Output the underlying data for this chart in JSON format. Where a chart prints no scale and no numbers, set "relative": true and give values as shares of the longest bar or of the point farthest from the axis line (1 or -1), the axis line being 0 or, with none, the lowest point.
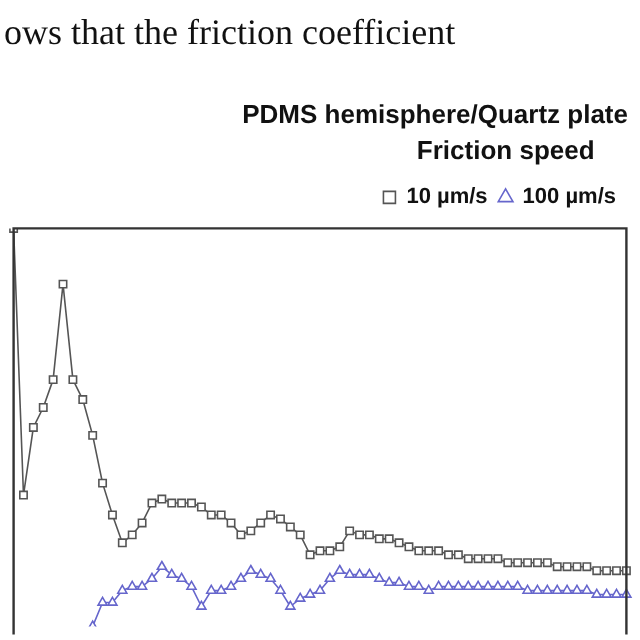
{
  "chart_data": {
    "type": "line",
    "title": "PDMS hemisphere/Quartz plate",
    "legend_title": "Friction speed",
    "legend": "top right",
    "relative": true,
    "grid": false,
    "annotations": [
      "ows that the friction coefficient"
    ],
    "categories": [
      null,
      null,
      null,
      null,
      null,
      null,
      null,
      null,
      null,
      null,
      null,
      null,
      null,
      null,
      null,
      null,
      null,
      null,
      null,
      null,
      null,
      null,
      null,
      null,
      null,
      null,
      null,
      null,
      null,
      null,
      null,
      null,
      null,
      null,
      null,
      null,
      null,
      null,
      null,
      null,
      null,
      null,
      null,
      null,
      null,
      null,
      null,
      null,
      null,
      null,
      null,
      null,
      null,
      null,
      null,
      null,
      null,
      null,
      null,
      null,
      null,
      null,
      null
    ],
    "series": [
      {
        "name": "10 µm/s",
        "color": "#555555",
        "marker": "square",
        "values": [
          1.0,
          0.33,
          0.5,
          0.55,
          0.62,
          0.86,
          0.62,
          0.57,
          0.48,
          0.36,
          0.28,
          0.21,
          0.23,
          0.26,
          0.31,
          0.32,
          0.31,
          0.31,
          0.31,
          0.3,
          0.28,
          0.28,
          0.26,
          0.23,
          0.24,
          0.26,
          0.28,
          0.27,
          0.25,
          0.23,
          0.18,
          0.19,
          0.19,
          0.2,
          0.24,
          0.23,
          0.23,
          0.22,
          0.22,
          0.21,
          0.2,
          0.19,
          0.19,
          0.19,
          0.18,
          0.18,
          0.17,
          0.17,
          0.17,
          0.17,
          0.16,
          0.16,
          0.16,
          0.16,
          0.16,
          0.15,
          0.15,
          0.15,
          0.15,
          0.14,
          0.14,
          0.14,
          0.14
        ]
      },
      {
        "name": "100 µm/s",
        "color": "#6666cc",
        "marker": "triangle",
        "values": [
          null,
          null,
          null,
          null,
          null,
          null,
          null,
          null,
          0,
          0.06,
          0.06,
          0.09,
          0.1,
          0.1,
          0.12,
          0.15,
          0.13,
          0.12,
          0.1,
          0.05,
          0.09,
          0.09,
          0.1,
          0.12,
          0.14,
          0.13,
          0.12,
          0.09,
          0.05,
          0.07,
          0.08,
          0.09,
          0.12,
          0.14,
          0.13,
          0.13,
          0.13,
          0.12,
          0.11,
          0.11,
          0.1,
          0.1,
          0.09,
          0.1,
          0.1,
          0.1,
          0.1,
          0.1,
          0.1,
          0.1,
          0.1,
          0.1,
          0.09,
          0.09,
          0.09,
          0.09,
          0.09,
          0.09,
          0.09,
          0.08,
          0.08,
          0.08,
          0.08
        ]
      }
    ]
  }
}
